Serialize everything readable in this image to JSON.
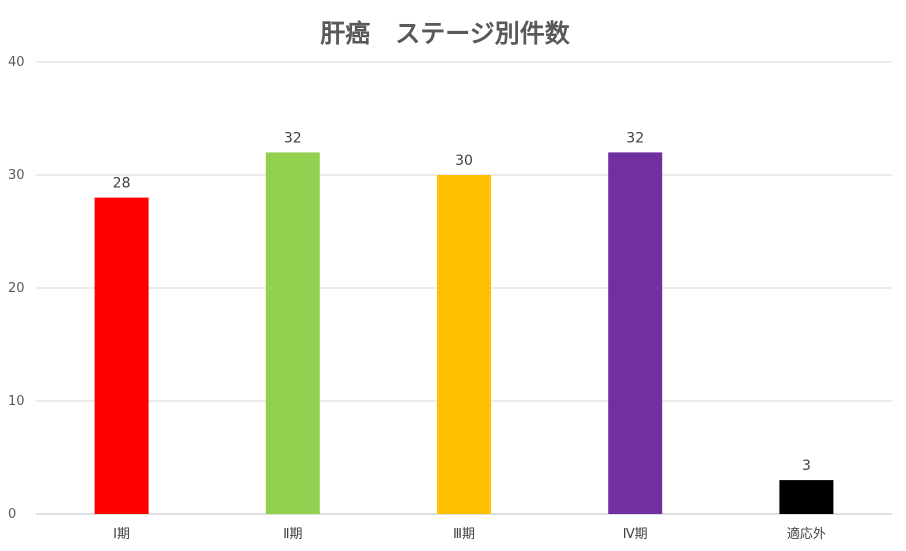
{
  "title": "肝癌　ステージ別件数",
  "chart_data": {
    "type": "bar",
    "title": "肝癌　ステージ別件数",
    "categories": [
      "Ⅰ期",
      "Ⅱ期",
      "Ⅲ期",
      "Ⅳ期",
      "適応外"
    ],
    "values": [
      28,
      32,
      30,
      32,
      3
    ],
    "colors": [
      "#ff0000",
      "#92d050",
      "#ffc000",
      "#7030a0",
      "#000000"
    ],
    "ylim": [
      0,
      40
    ],
    "yticks": [
      0,
      10,
      20,
      30,
      40
    ],
    "grid": true,
    "legend": "none",
    "data_labels": true
  }
}
